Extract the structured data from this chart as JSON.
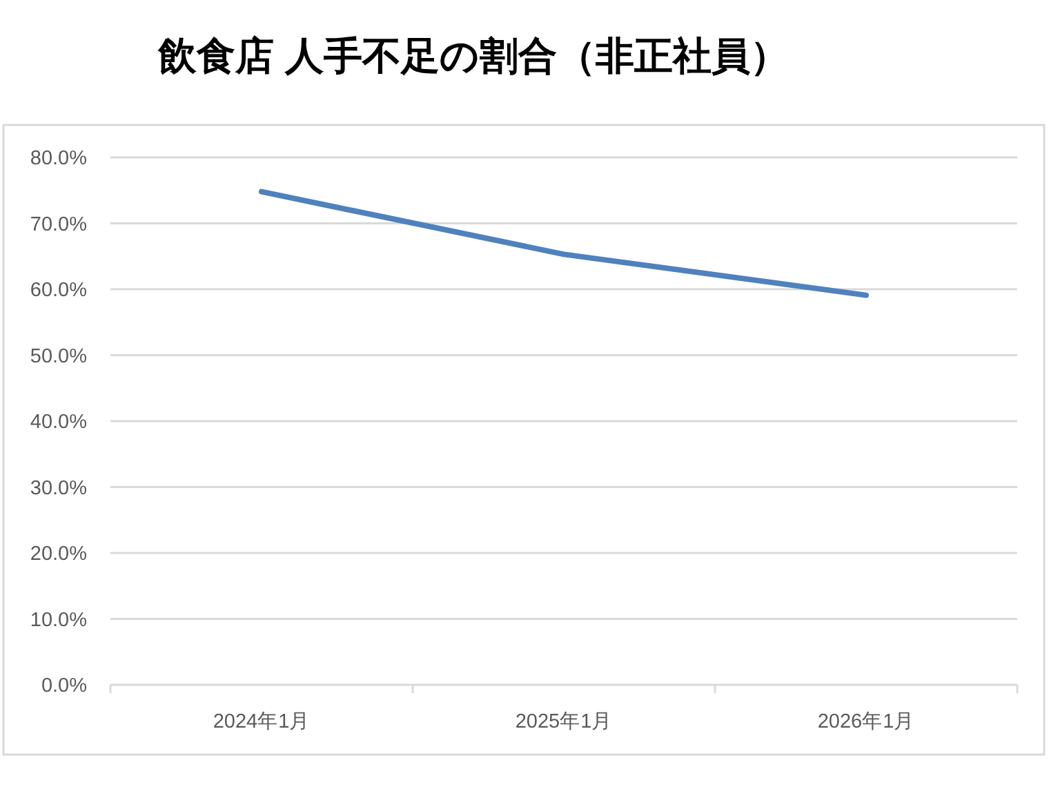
{
  "chart_data": {
    "type": "line",
    "title": "飲食店 人手不足の割合（非正社員）",
    "categories": [
      "2024年1月",
      "2025年1月",
      "2026年1月"
    ],
    "series": [
      {
        "color": "#4f81bd",
        "values": [
          74.8,
          65.3,
          59.1
        ]
      }
    ],
    "ylim": [
      0,
      80
    ],
    "yticks": [
      {
        "value": 0,
        "label": "0.0%"
      },
      {
        "value": 10,
        "label": "10.0%"
      },
      {
        "value": 20,
        "label": "20.0%"
      },
      {
        "value": 30,
        "label": "30.0%"
      },
      {
        "value": 40,
        "label": "40.0%"
      },
      {
        "value": 50,
        "label": "50.0%"
      },
      {
        "value": 60,
        "label": "60.0%"
      },
      {
        "value": 70,
        "label": "70.0%"
      },
      {
        "value": 80,
        "label": "80.0%"
      }
    ],
    "grid": "y",
    "line_style": "solid"
  }
}
